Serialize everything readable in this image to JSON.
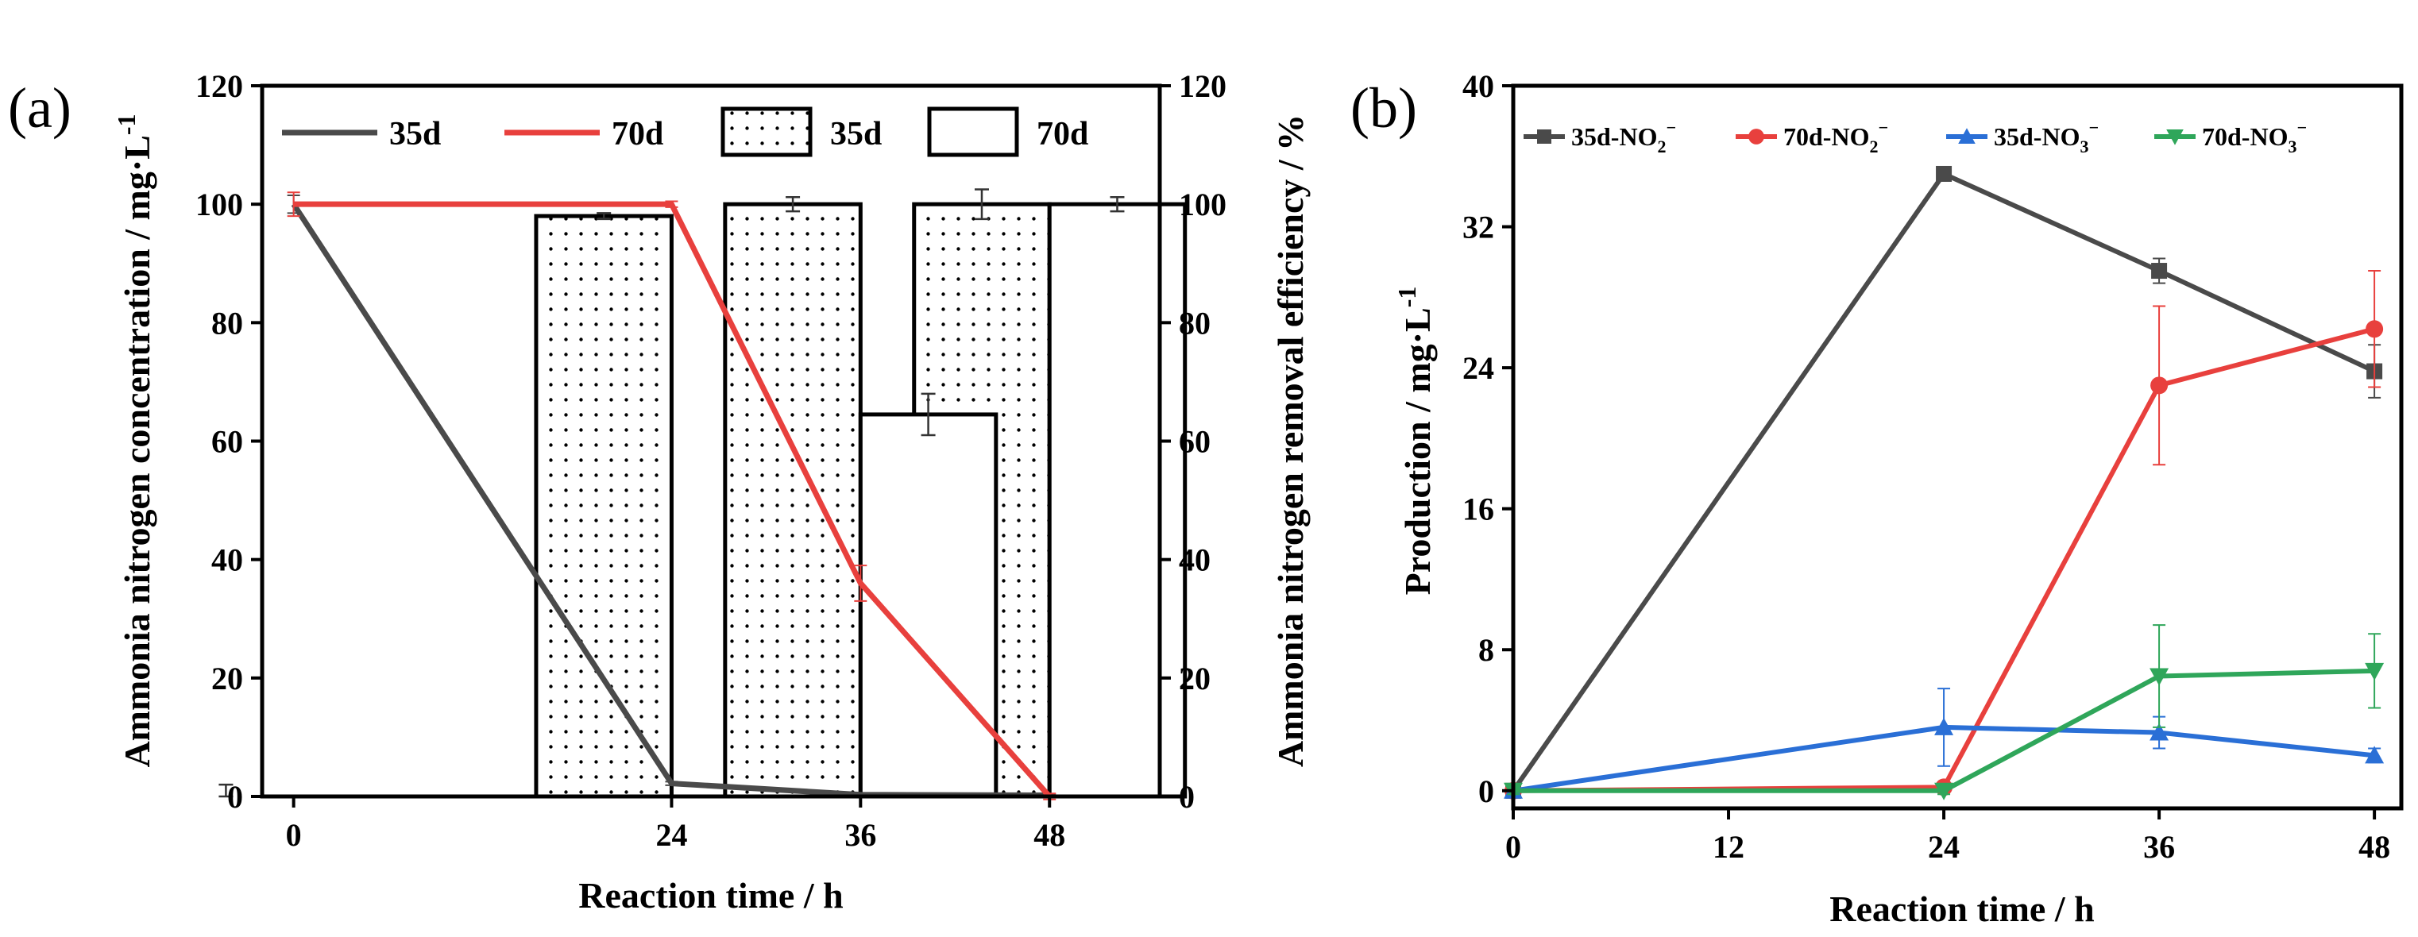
{
  "chart_data": [
    {
      "panel_label": "(a)",
      "type": "bar+line",
      "xlabel": "Reaction time / h",
      "ylabel_left": "Ammonia nitrogen concentration / mg·L",
      "ylabel_left_sup": "-1",
      "ylabel_right": "Ammonia nitrogen removal efficiency / %",
      "xlim": [
        -2,
        55
      ],
      "x_ticks": [
        0,
        24,
        36,
        48
      ],
      "ylim_left": [
        0,
        120
      ],
      "ylim_right": [
        0,
        120
      ],
      "y_ticks": [
        0,
        20,
        40,
        60,
        80,
        100,
        120
      ],
      "legend": [
        {
          "label": "35d",
          "kind": "line",
          "color": "#4a4a4a"
        },
        {
          "label": "70d",
          "kind": "line",
          "color": "#e8403d"
        },
        {
          "label": "35d",
          "kind": "bar",
          "pattern": "dots"
        },
        {
          "label": "70d",
          "kind": "bar",
          "pattern": "none"
        }
      ],
      "line_series": [
        {
          "name": "35d",
          "color": "#4a4a4a",
          "x": [
            0,
            24,
            36,
            48
          ],
          "y": [
            100,
            2.2,
            0.3,
            0.2
          ],
          "err": [
            1.5,
            0.3,
            0.2,
            0.2
          ]
        },
        {
          "name": "70d",
          "color": "#e8403d",
          "x": [
            0,
            24,
            36,
            48
          ],
          "y": [
            100,
            100,
            36,
            0
          ],
          "err": [
            2,
            0.5,
            3,
            0.5
          ]
        }
      ],
      "bar_series": [
        {
          "name": "35d",
          "pattern": "dots",
          "x": [
            0,
            24,
            36,
            48
          ],
          "values": [
            0,
            98,
            100,
            100
          ],
          "err": [
            2,
            0.5,
            1.2,
            2.5
          ]
        },
        {
          "name": "70d",
          "pattern": "none",
          "x": [
            0,
            24,
            36,
            48
          ],
          "values": [
            0,
            0,
            64.5,
            100
          ],
          "err": [
            0,
            0,
            3.5,
            1.2
          ]
        }
      ],
      "bar_offset_hours": [
        -4.3,
        4.3
      ],
      "bar_width_hours": 8.6
    },
    {
      "panel_label": "(b)",
      "type": "line",
      "xlabel": "Reaction time / h",
      "ylabel": "Production / mg·L",
      "ylabel_sup": "-1",
      "xlim": [
        0,
        49.5
      ],
      "x_ticks": [
        0,
        12,
        24,
        36,
        48
      ],
      "ylim": [
        -1,
        40
      ],
      "y_ticks": [
        0,
        8,
        16,
        24,
        32,
        40
      ],
      "series": [
        {
          "name": "35d-NO",
          "sub": "2",
          "sup": "−",
          "color": "#4a4a4a",
          "marker": "square",
          "x": [
            0,
            24,
            36,
            48
          ],
          "y": [
            0,
            35,
            29.5,
            23.8
          ],
          "err": [
            0.3,
            0.3,
            0.7,
            1.5
          ]
        },
        {
          "name": "70d-NO",
          "sub": "2",
          "sup": "−",
          "color": "#e8403d",
          "marker": "circle",
          "x": [
            0,
            24,
            36,
            48
          ],
          "y": [
            0,
            0.2,
            23,
            26.2
          ],
          "err": [
            0.2,
            0.2,
            4.5,
            3.3
          ]
        },
        {
          "name": "35d-NO",
          "sub": "3",
          "sup": "−",
          "color": "#2a6fd6",
          "marker": "triangle-up",
          "x": [
            0,
            24,
            36,
            48
          ],
          "y": [
            0,
            3.6,
            3.3,
            2
          ],
          "err": [
            0.2,
            2.2,
            0.9,
            0.4
          ]
        },
        {
          "name": "70d-NO",
          "sub": "3",
          "sup": "−",
          "color": "#2fa65a",
          "marker": "triangle-down",
          "x": [
            0,
            24,
            36,
            48
          ],
          "y": [
            0,
            0,
            6.5,
            6.8
          ],
          "err": [
            0.2,
            0.2,
            2.9,
            2.1
          ]
        }
      ]
    }
  ]
}
